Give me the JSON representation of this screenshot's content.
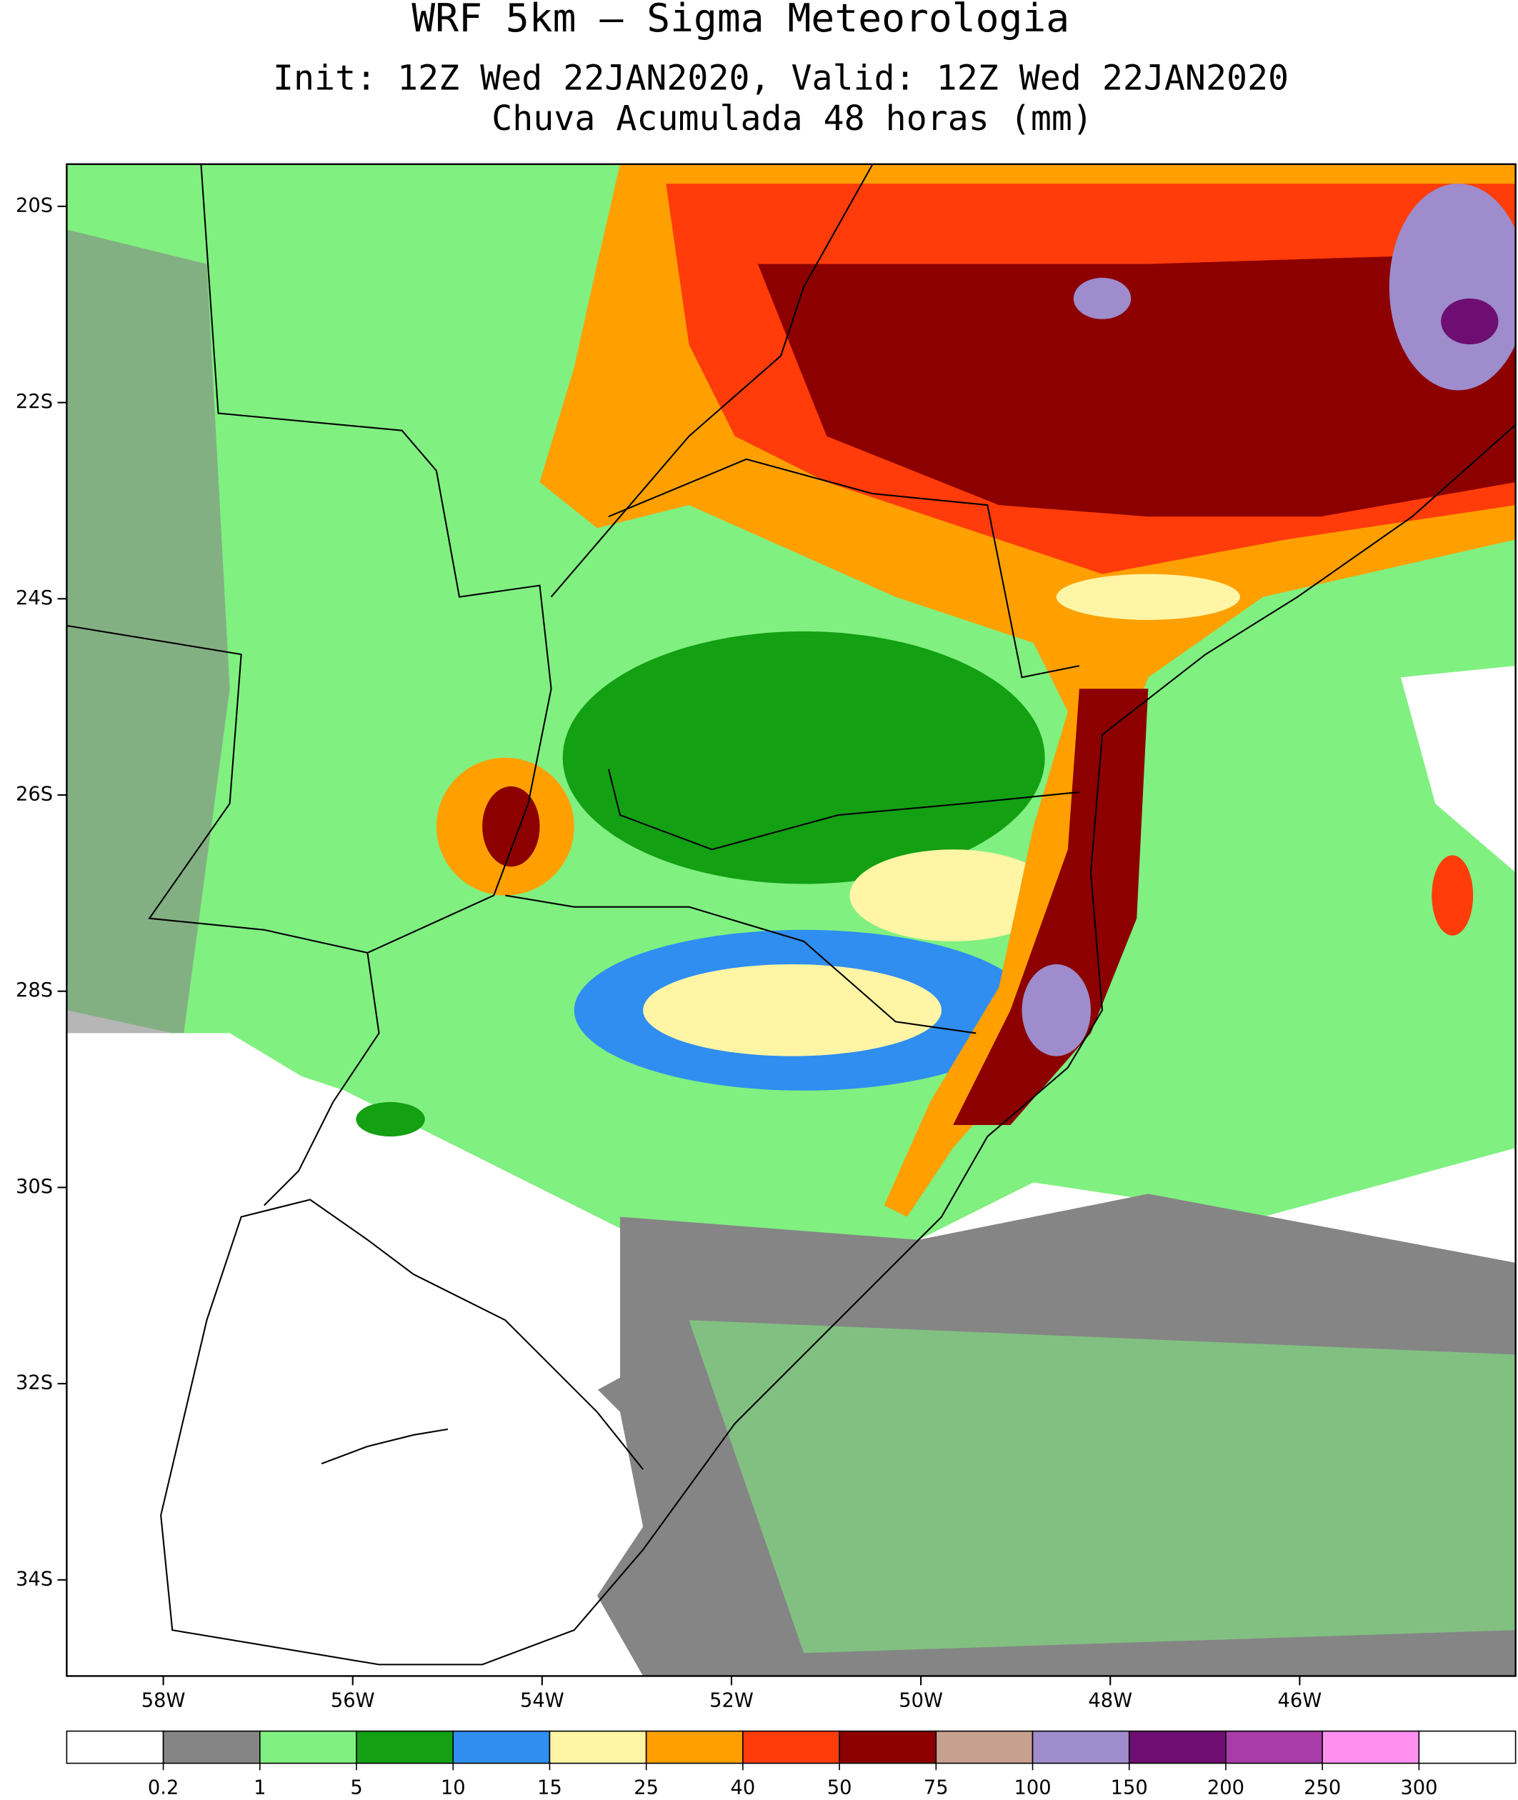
{
  "map": {
    "title": "WRF 5km — Sigma Meteorologia",
    "subtitle": "Init: 12Z Wed 22JAN2020, Valid: 12Z Wed 22JAN2020",
    "field": "Chuva Acumulada 48 horas (mm)",
    "xlim": [
      -59.02,
      -43.72
    ],
    "ylim": [
      -34.98,
      -19.57
    ],
    "xticks": [
      {
        "value": -58,
        "label": "58W"
      },
      {
        "value": -56,
        "label": "56W"
      },
      {
        "value": -54,
        "label": "54W"
      },
      {
        "value": -52,
        "label": "52W"
      },
      {
        "value": -50,
        "label": "50W"
      },
      {
        "value": -48,
        "label": "48W"
      },
      {
        "value": -46,
        "label": "46W"
      }
    ],
    "yticks": [
      {
        "value": -20,
        "label": "20S"
      },
      {
        "value": -22,
        "label": "22S"
      },
      {
        "value": -24,
        "label": "24S"
      },
      {
        "value": -26,
        "label": "26S"
      },
      {
        "value": -28,
        "label": "28S"
      },
      {
        "value": -30,
        "label": "30S"
      },
      {
        "value": -32,
        "label": "32S"
      },
      {
        "value": -34,
        "label": "34S"
      }
    ],
    "colorbar": {
      "levels": [
        0.2,
        1,
        5,
        10,
        15,
        25,
        40,
        50,
        75,
        100,
        150,
        200,
        250,
        300
      ],
      "colors": [
        "#ffffff",
        "#858585",
        "#80f080",
        "#13a013",
        "#2f8ef0",
        "#fff5a5",
        "#ffa000",
        "#ff3c0a",
        "#8c0000",
        "#c8a090",
        "#9e8ccc",
        "#6e0e72",
        "#a83ca8",
        "#ff90f0",
        "#ffffff"
      ]
    }
  }
}
